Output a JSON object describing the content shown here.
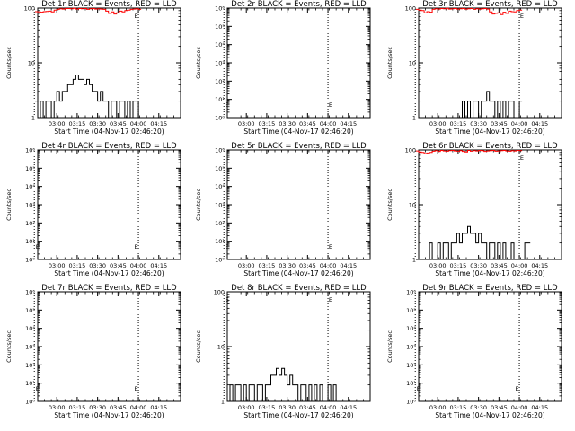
{
  "chart_data": [
    {
      "type": "line",
      "title": "Det 1r BLACK = Events, RED = LLD",
      "ylabel": "Counts/sec",
      "xlabel": "Start Time (04-Nov-17 02:46:20)",
      "yscale": "log",
      "ylim": [
        1,
        100
      ],
      "y_ticks": [
        "1",
        "10",
        "100"
      ],
      "x_ticks": [
        "03:00",
        "03:15",
        "03:30",
        "03:45",
        "04:00",
        "04:15"
      ],
      "xlim_min": [
        0,
        105
      ],
      "x_tick_min": [
        14,
        29,
        44,
        59,
        74,
        89
      ],
      "vlines_min": [
        -2.5,
        74
      ],
      "markers": [
        "E"
      ],
      "marker_min": [
        71
      ],
      "series": [
        {
          "color": "#000000",
          "x_min": [
            -2,
            0,
            2,
            4,
            6,
            8,
            10,
            12,
            14,
            16,
            18,
            20,
            22,
            24,
            26,
            28,
            30,
            32,
            34,
            36,
            38,
            40,
            42,
            44,
            46,
            48,
            50,
            52,
            54,
            56,
            58,
            60,
            62,
            64,
            66,
            68,
            70,
            72,
            74
          ],
          "y": [
            2,
            1,
            2,
            1,
            2,
            2,
            1,
            2,
            3,
            2,
            3,
            3,
            4,
            4,
            5,
            6,
            5,
            5,
            4,
            5,
            4,
            3,
            3,
            2,
            3,
            2,
            2,
            1,
            2,
            2,
            1,
            2,
            2,
            1,
            2,
            1,
            2,
            2,
            1
          ]
        },
        {
          "color": "#ff0000",
          "x_min": [
            -2,
            0,
            2,
            4,
            6,
            8,
            10,
            12,
            14,
            16,
            18,
            20,
            22,
            24,
            26,
            28,
            30,
            32,
            34,
            36,
            38,
            40,
            42,
            44,
            46,
            48,
            50,
            52,
            54,
            56,
            58,
            60,
            62,
            64,
            66,
            68,
            70,
            72,
            74
          ],
          "y": [
            86,
            85,
            84,
            86,
            87,
            88,
            85,
            92,
            95,
            97,
            96,
            98,
            98,
            97,
            99,
            96,
            98,
            97,
            98,
            95,
            97,
            98,
            96,
            97,
            96,
            95,
            88,
            80,
            85,
            78,
            82,
            88,
            85,
            90,
            92,
            95,
            96,
            97,
            95
          ]
        }
      ]
    },
    {
      "type": "line",
      "title": "Det 2r BLACK = Events, RED = LLD",
      "ylabel": "Counts/sec",
      "xlabel": "Start Time (04-Nov-17 02:46:20)",
      "yscale": "log",
      "ylim": [
        1,
        1000000
      ],
      "y_ticks": [
        "10⁰",
        "10¹",
        "10²",
        "10³",
        "10⁴",
        "10⁵",
        "10⁶"
      ],
      "x_ticks": [
        "03:00",
        "03:15",
        "03:30",
        "03:45",
        "04:00",
        "04:15"
      ],
      "xlim_min": [
        0,
        105
      ],
      "x_tick_min": [
        14,
        29,
        44,
        59,
        74,
        89
      ],
      "vlines_min": [
        -2.5,
        74
      ],
      "markers": [
        "E",
        "E"
      ],
      "marker_min": [
        -1.5,
        74.5
      ],
      "series": []
    },
    {
      "type": "line",
      "title": "Det 3r BLACK = Events, RED = LLD",
      "ylabel": "Counts/sec",
      "xlabel": "Start Time (04-Nov-17 02:46:20)",
      "yscale": "log",
      "ylim": [
        1,
        100
      ],
      "y_ticks": [
        "1",
        "10",
        "100"
      ],
      "x_ticks": [
        "03:00",
        "03:15",
        "03:30",
        "03:45",
        "04:00",
        "04:15"
      ],
      "xlim_min": [
        0,
        105
      ],
      "x_tick_min": [
        14,
        29,
        44,
        59,
        74,
        89
      ],
      "vlines_min": [
        -2.5,
        74
      ],
      "markers": [
        "E"
      ],
      "marker_min": [
        74.5
      ],
      "series": [
        {
          "color": "#000000",
          "x_min": [
            30,
            32,
            34,
            36,
            38,
            40,
            42,
            44,
            46,
            48,
            50,
            52,
            54,
            56,
            58,
            60,
            62,
            64,
            66,
            68,
            70,
            72,
            74
          ],
          "y": [
            1,
            2,
            1,
            2,
            1,
            2,
            2,
            1,
            2,
            2,
            3,
            2,
            2,
            1,
            2,
            1,
            2,
            1,
            2,
            2,
            1,
            1,
            2
          ]
        },
        {
          "color": "#ff0000",
          "x_min": [
            -2,
            0,
            2,
            4,
            6,
            8,
            10,
            12,
            14,
            16,
            18,
            20,
            22,
            24,
            26,
            28,
            30,
            32,
            34,
            36,
            38,
            40,
            42,
            44,
            46,
            48,
            50,
            52,
            54,
            56,
            58,
            60,
            62,
            64,
            66,
            68,
            70,
            72,
            74
          ],
          "y": [
            95,
            92,
            90,
            82,
            86,
            84,
            95,
            97,
            96,
            98,
            97,
            99,
            96,
            97,
            98,
            96,
            97,
            98,
            96,
            97,
            98,
            95,
            97,
            96,
            97,
            98,
            96,
            85,
            78,
            80,
            82,
            76,
            84,
            80,
            88,
            86,
            85,
            90,
            92
          ]
        }
      ]
    },
    {
      "type": "line",
      "title": "Det 4r BLACK = Events, RED = LLD",
      "ylabel": "Counts/sec",
      "xlabel": "Start Time (04-Nov-17 02:46:20)",
      "yscale": "log",
      "ylim": [
        1,
        1000000
      ],
      "y_ticks": [
        "10⁰",
        "10¹",
        "10²",
        "10³",
        "10⁴",
        "10⁵",
        "10⁶"
      ],
      "x_ticks": [
        "03:00",
        "03:15",
        "03:30",
        "03:45",
        "04:00",
        "04:15"
      ],
      "xlim_min": [
        0,
        105
      ],
      "x_tick_min": [
        14,
        29,
        44,
        59,
        74,
        89
      ],
      "vlines_min": [
        -2.5,
        74
      ],
      "markers": [
        "E",
        "E"
      ],
      "marker_min": [
        -1.5,
        71
      ],
      "series": []
    },
    {
      "type": "line",
      "title": "Det 5r BLACK = Events, RED = LLD",
      "ylabel": "Counts/sec",
      "xlabel": "Start Time (04-Nov-17 02:46:20)",
      "yscale": "log",
      "ylim": [
        1,
        1000000
      ],
      "y_ticks": [
        "10⁰",
        "10¹",
        "10²",
        "10³",
        "10⁴",
        "10⁵",
        "10⁶"
      ],
      "x_ticks": [
        "03:00",
        "03:15",
        "03:30",
        "03:45",
        "04:00",
        "04:15"
      ],
      "xlim_min": [
        0,
        105
      ],
      "x_tick_min": [
        14,
        29,
        44,
        59,
        74,
        89
      ],
      "vlines_min": [
        -2.5,
        74
      ],
      "markers": [
        "E",
        "E"
      ],
      "marker_min": [
        -1.5,
        74.5
      ],
      "series": []
    },
    {
      "type": "line",
      "title": "Det 6r BLACK = Events, RED = LLD",
      "ylabel": "Counts/sec",
      "xlabel": "Start Time (04-Nov-17 02:46:20)",
      "yscale": "log",
      "ylim": [
        1,
        100
      ],
      "y_ticks": [
        "1",
        "10",
        "100"
      ],
      "x_ticks": [
        "03:00",
        "03:15",
        "03:30",
        "03:45",
        "04:00",
        "04:15"
      ],
      "xlim_min": [
        0,
        105
      ],
      "x_tick_min": [
        14,
        29,
        44,
        59,
        74,
        89
      ],
      "vlines_min": [
        -2.5,
        74
      ],
      "markers": [
        "E"
      ],
      "marker_min": [
        74.5
      ],
      "series": [
        {
          "color": "#000000",
          "x_min": [
            -2,
            0,
            2,
            4,
            6,
            8,
            10,
            12,
            14,
            16,
            18,
            20,
            22,
            24,
            26,
            28,
            30,
            32,
            34,
            36,
            38,
            40,
            42,
            44,
            46,
            48,
            50,
            52,
            54,
            56,
            58,
            60,
            62,
            64,
            66,
            68,
            70,
            72,
            74,
            76,
            78,
            80
          ],
          "y": [
            1,
            1,
            1,
            1,
            1,
            2,
            1,
            1,
            2,
            1,
            2,
            2,
            1,
            2,
            2,
            3,
            2,
            3,
            3,
            4,
            3,
            3,
            2,
            3,
            2,
            2,
            1,
            2,
            2,
            1,
            2,
            1,
            2,
            1,
            1,
            2,
            1,
            1,
            1,
            1,
            2,
            2
          ]
        },
        {
          "color": "#ff0000",
          "x_min": [
            -2,
            0,
            2,
            4,
            6,
            8,
            10,
            12,
            14,
            16,
            18,
            20,
            22,
            24,
            26,
            28,
            30,
            32,
            34,
            36,
            38,
            40,
            42,
            44,
            46,
            48,
            50,
            52,
            54,
            56,
            58,
            60,
            62,
            64,
            66,
            68,
            70,
            72,
            74
          ],
          "y": [
            96,
            92,
            90,
            86,
            88,
            90,
            95,
            97,
            94,
            98,
            96,
            95,
            97,
            98,
            96,
            95,
            97,
            94,
            92,
            98,
            95,
            97,
            96,
            98,
            97,
            94,
            96,
            97,
            98,
            95,
            96,
            97,
            98,
            96,
            95,
            97,
            96,
            98,
            97
          ]
        }
      ]
    },
    {
      "type": "line",
      "title": "Det 7r BLACK = Events, RED = LLD",
      "ylabel": "Counts/sec",
      "xlabel": "Start Time (04-Nov-17 02:46:20)",
      "yscale": "log",
      "ylim": [
        1,
        1000000
      ],
      "y_ticks": [
        "10⁰",
        "10¹",
        "10²",
        "10³",
        "10⁴",
        "10⁵",
        "10⁶"
      ],
      "x_ticks": [
        "03:00",
        "03:15",
        "03:30",
        "03:45",
        "04:00",
        "04:15"
      ],
      "xlim_min": [
        0,
        105
      ],
      "x_tick_min": [
        14,
        29,
        44,
        59,
        74,
        89
      ],
      "vlines_min": [
        -2.5,
        74
      ],
      "markers": [
        "E",
        "E"
      ],
      "marker_min": [
        -1.5,
        71
      ],
      "series": []
    },
    {
      "type": "line",
      "title": "Det 8r BLACK = Events, RED = LLD",
      "ylabel": "Counts/sec",
      "xlabel": "Start Time (04-Nov-17 02:46:20)",
      "yscale": "log",
      "ylim": [
        1,
        100
      ],
      "y_ticks": [
        "1",
        "10",
        "100"
      ],
      "x_ticks": [
        "03:00",
        "03:15",
        "03:30",
        "03:45",
        "04:00",
        "04:15"
      ],
      "xlim_min": [
        0,
        105
      ],
      "x_tick_min": [
        14,
        29,
        44,
        59,
        74,
        89
      ],
      "vlines_min": [
        -2.5,
        74
      ],
      "markers": [
        "E",
        "E"
      ],
      "marker_min": [
        -1.5,
        74.5
      ],
      "series": [
        {
          "color": "#000000",
          "x_min": [
            0,
            2,
            4,
            6,
            8,
            10,
            12,
            14,
            16,
            18,
            20,
            22,
            24,
            26,
            28,
            30,
            32,
            34,
            36,
            38,
            40,
            42,
            44,
            46,
            48,
            50,
            52,
            54,
            56,
            58,
            60,
            62,
            64,
            66,
            68,
            70,
            72,
            74,
            76,
            78,
            80
          ],
          "y": [
            1,
            2,
            1,
            2,
            2,
            1,
            2,
            1,
            2,
            2,
            1,
            2,
            2,
            1,
            2,
            2,
            3,
            3,
            4,
            3,
            4,
            3,
            2,
            3,
            2,
            2,
            1,
            2,
            2,
            1,
            2,
            1,
            2,
            1,
            2,
            1,
            1,
            2,
            1,
            2,
            1
          ]
        }
      ]
    },
    {
      "type": "line",
      "title": "Det 9r BLACK = Events, RED = LLD",
      "ylabel": "Counts/sec",
      "xlabel": "Start Time (04-Nov-17 02:46:20)",
      "yscale": "log",
      "ylim": [
        1,
        1000000
      ],
      "y_ticks": [
        "10⁰",
        "10¹",
        "10²",
        "10³",
        "10⁴",
        "10⁵",
        "10⁶"
      ],
      "x_ticks": [
        "03:00",
        "03:15",
        "03:30",
        "03:45",
        "04:00",
        "04:15"
      ],
      "xlim_min": [
        0,
        105
      ],
      "x_tick_min": [
        14,
        29,
        44,
        59,
        74,
        89
      ],
      "vlines_min": [
        -2.5,
        74
      ],
      "markers": [
        "E",
        "E"
      ],
      "marker_min": [
        -1.5,
        71
      ],
      "series": []
    }
  ]
}
